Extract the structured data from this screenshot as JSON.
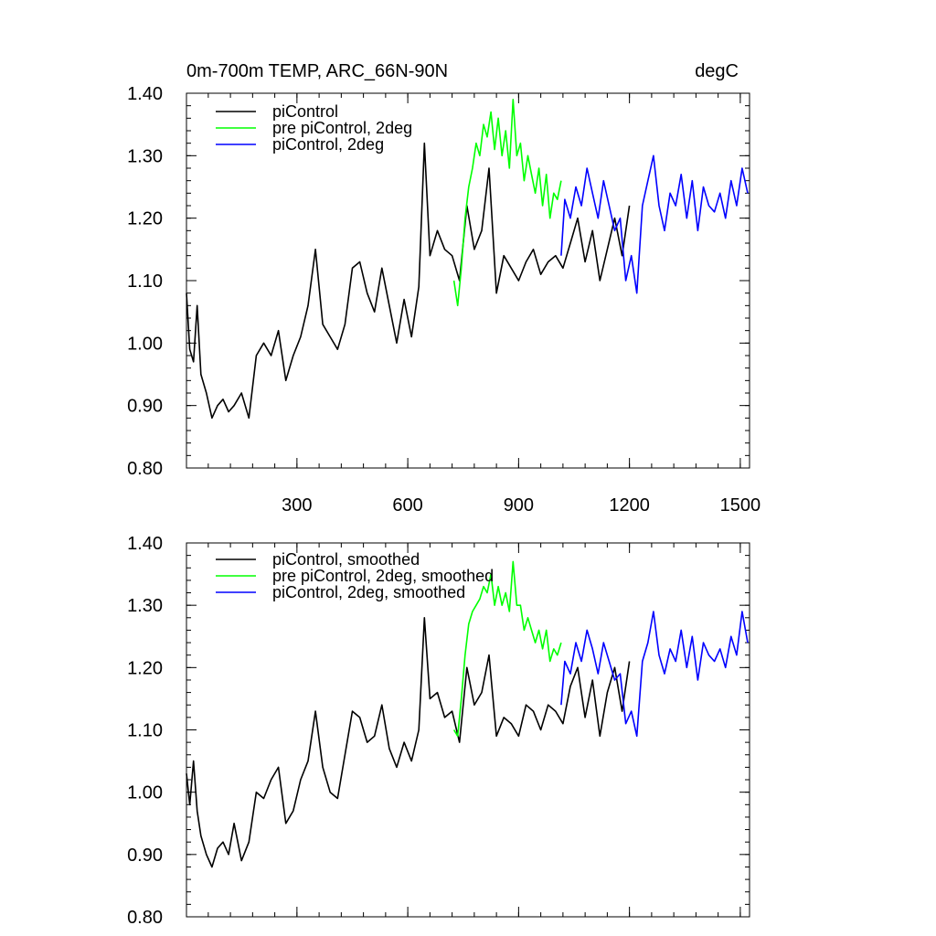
{
  "chart_data": [
    {
      "type": "line",
      "title": "0m-700m TEMP, ARC_66N-90N",
      "units": "degC",
      "xlim": [
        1,
        1525
      ],
      "ylim": [
        0.8,
        1.4
      ],
      "xticks": [
        300,
        600,
        900,
        1200,
        1500
      ],
      "xtick_labels": [
        "300",
        "600",
        "900",
        "1200",
        "1500"
      ],
      "yticks": [
        0.8,
        0.9,
        1.0,
        1.1,
        1.2,
        1.3,
        1.4
      ],
      "ytick_labels": [
        "0.80",
        "0.90",
        "1.00",
        "1.10",
        "1.20",
        "1.30",
        "1.40"
      ],
      "legend_position": "top-left",
      "series": [
        {
          "name": "piControl",
          "color": "#000000",
          "x": [
            1,
            10,
            20,
            30,
            40,
            55,
            70,
            85,
            100,
            115,
            130,
            150,
            170,
            190,
            210,
            230,
            250,
            270,
            290,
            310,
            330,
            350,
            370,
            390,
            410,
            430,
            450,
            470,
            490,
            510,
            530,
            550,
            570,
            590,
            610,
            630,
            645,
            660,
            680,
            700,
            720,
            740,
            760,
            780,
            800,
            820,
            840,
            860,
            880,
            900,
            920,
            940,
            960,
            980,
            1000,
            1020,
            1040,
            1060,
            1080,
            1100,
            1120,
            1140,
            1160,
            1180,
            1200
          ],
          "values": [
            1.08,
            0.99,
            0.97,
            1.06,
            0.95,
            0.92,
            0.88,
            0.9,
            0.91,
            0.89,
            0.9,
            0.92,
            0.88,
            0.98,
            1.0,
            0.98,
            1.02,
            0.94,
            0.98,
            1.01,
            1.06,
            1.15,
            1.03,
            1.01,
            0.99,
            1.03,
            1.12,
            1.13,
            1.08,
            1.05,
            1.12,
            1.06,
            1.0,
            1.07,
            1.01,
            1.09,
            1.32,
            1.14,
            1.18,
            1.15,
            1.14,
            1.1,
            1.22,
            1.15,
            1.18,
            1.28,
            1.08,
            1.14,
            1.12,
            1.1,
            1.13,
            1.15,
            1.11,
            1.13,
            1.14,
            1.12,
            1.16,
            1.2,
            1.13,
            1.18,
            1.1,
            1.15,
            1.2,
            1.14,
            1.22
          ]
        },
        {
          "name": "pre piControl, 2deg",
          "color": "#00ff00",
          "x": [
            725,
            735,
            745,
            755,
            765,
            775,
            785,
            795,
            805,
            815,
            825,
            835,
            845,
            855,
            865,
            875,
            885,
            895,
            905,
            915,
            925,
            935,
            945,
            955,
            965,
            975,
            985,
            995,
            1005,
            1015
          ],
          "values": [
            1.1,
            1.06,
            1.12,
            1.2,
            1.25,
            1.28,
            1.32,
            1.3,
            1.35,
            1.33,
            1.37,
            1.31,
            1.36,
            1.3,
            1.34,
            1.28,
            1.39,
            1.3,
            1.32,
            1.26,
            1.3,
            1.27,
            1.24,
            1.28,
            1.22,
            1.27,
            1.2,
            1.24,
            1.23,
            1.26
          ]
        },
        {
          "name": "piControl, 2deg",
          "color": "#0000ff",
          "x": [
            1015,
            1025,
            1040,
            1055,
            1070,
            1085,
            1100,
            1115,
            1130,
            1145,
            1160,
            1175,
            1190,
            1205,
            1220,
            1235,
            1250,
            1265,
            1280,
            1295,
            1310,
            1325,
            1340,
            1355,
            1370,
            1385,
            1400,
            1415,
            1430,
            1445,
            1460,
            1475,
            1490,
            1505,
            1520
          ],
          "values": [
            1.14,
            1.23,
            1.2,
            1.25,
            1.22,
            1.28,
            1.24,
            1.2,
            1.26,
            1.22,
            1.18,
            1.2,
            1.1,
            1.14,
            1.08,
            1.22,
            1.26,
            1.3,
            1.22,
            1.18,
            1.24,
            1.22,
            1.27,
            1.2,
            1.26,
            1.18,
            1.25,
            1.22,
            1.21,
            1.24,
            1.2,
            1.26,
            1.22,
            1.28,
            1.24
          ]
        }
      ]
    },
    {
      "type": "line",
      "title": "",
      "units": "",
      "xlim": [
        1,
        1525
      ],
      "ylim": [
        0.8,
        1.4
      ],
      "xticks": [
        300,
        600,
        900,
        1200,
        1500
      ],
      "xtick_labels": [],
      "yticks": [
        0.8,
        0.9,
        1.0,
        1.1,
        1.2,
        1.3,
        1.4
      ],
      "ytick_labels": [
        "0.80",
        "0.90",
        "1.00",
        "1.10",
        "1.20",
        "1.30",
        "1.40"
      ],
      "legend_position": "top-left",
      "series": [
        {
          "name": "piControl, smoothed",
          "color": "#000000",
          "x": [
            1,
            10,
            20,
            30,
            40,
            55,
            70,
            85,
            100,
            115,
            130,
            150,
            170,
            190,
            210,
            230,
            250,
            270,
            290,
            310,
            330,
            350,
            370,
            390,
            410,
            430,
            450,
            470,
            490,
            510,
            530,
            550,
            570,
            590,
            610,
            630,
            645,
            660,
            680,
            700,
            720,
            740,
            760,
            780,
            800,
            820,
            840,
            860,
            880,
            900,
            920,
            940,
            960,
            980,
            1000,
            1020,
            1040,
            1060,
            1080,
            1100,
            1120,
            1140,
            1160,
            1180,
            1200
          ],
          "values": [
            1.03,
            0.98,
            1.05,
            0.97,
            0.93,
            0.9,
            0.88,
            0.91,
            0.92,
            0.9,
            0.95,
            0.89,
            0.92,
            1.0,
            0.99,
            1.02,
            1.04,
            0.95,
            0.97,
            1.02,
            1.05,
            1.13,
            1.04,
            1.0,
            0.99,
            1.06,
            1.13,
            1.12,
            1.08,
            1.09,
            1.14,
            1.07,
            1.04,
            1.08,
            1.05,
            1.1,
            1.28,
            1.15,
            1.16,
            1.12,
            1.13,
            1.08,
            1.2,
            1.14,
            1.16,
            1.22,
            1.09,
            1.12,
            1.11,
            1.09,
            1.14,
            1.13,
            1.1,
            1.14,
            1.13,
            1.11,
            1.17,
            1.2,
            1.12,
            1.18,
            1.09,
            1.16,
            1.2,
            1.13,
            1.21
          ]
        },
        {
          "name": "pre piControl, 2deg, smoothed",
          "color": "#00ff00",
          "x": [
            725,
            735,
            745,
            755,
            765,
            775,
            785,
            795,
            805,
            815,
            825,
            835,
            845,
            855,
            865,
            875,
            885,
            895,
            905,
            915,
            925,
            935,
            945,
            955,
            965,
            975,
            985,
            995,
            1005,
            1015
          ],
          "values": [
            1.1,
            1.09,
            1.15,
            1.22,
            1.27,
            1.29,
            1.3,
            1.31,
            1.33,
            1.32,
            1.35,
            1.3,
            1.33,
            1.3,
            1.32,
            1.29,
            1.37,
            1.3,
            1.3,
            1.26,
            1.28,
            1.26,
            1.24,
            1.26,
            1.23,
            1.26,
            1.21,
            1.23,
            1.22,
            1.24
          ]
        },
        {
          "name": "piControl, 2deg, smoothed",
          "color": "#0000ff",
          "x": [
            1015,
            1025,
            1040,
            1055,
            1070,
            1085,
            1100,
            1115,
            1130,
            1145,
            1160,
            1175,
            1190,
            1205,
            1220,
            1235,
            1250,
            1265,
            1280,
            1295,
            1310,
            1325,
            1340,
            1355,
            1370,
            1385,
            1400,
            1415,
            1430,
            1445,
            1460,
            1475,
            1490,
            1505,
            1520
          ],
          "values": [
            1.14,
            1.21,
            1.19,
            1.24,
            1.21,
            1.26,
            1.23,
            1.19,
            1.24,
            1.21,
            1.18,
            1.19,
            1.11,
            1.13,
            1.09,
            1.21,
            1.24,
            1.29,
            1.22,
            1.19,
            1.23,
            1.21,
            1.26,
            1.2,
            1.25,
            1.18,
            1.24,
            1.22,
            1.21,
            1.23,
            1.2,
            1.25,
            1.22,
            1.29,
            1.24
          ]
        }
      ]
    }
  ]
}
